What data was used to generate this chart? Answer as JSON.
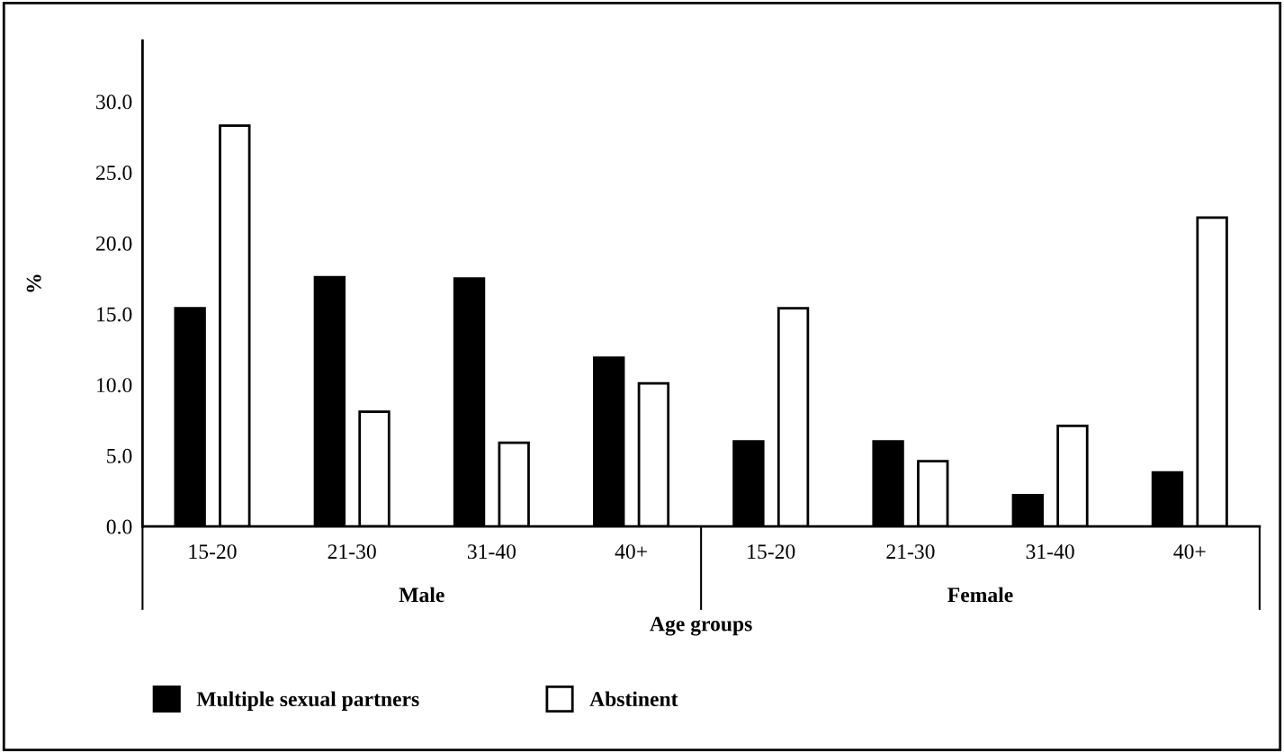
{
  "chart_data": {
    "type": "bar",
    "xlabel": "Age groups",
    "ylabel": "%",
    "categories": [
      "15-20",
      "21-30",
      "31-40",
      "40+",
      "15-20",
      "21-30",
      "31-40",
      "40+"
    ],
    "series": [
      {
        "name": "Multiple sexual partners",
        "color": "#000000",
        "values": [
          15.4,
          17.6,
          17.5,
          11.9,
          6.0,
          6.0,
          2.2,
          3.8
        ]
      },
      {
        "name": "Abstinent",
        "color": "#ffffff",
        "values": [
          28.3,
          8.1,
          5.9,
          10.1,
          15.4,
          4.6,
          7.1,
          21.8
        ]
      }
    ],
    "ylim": [
      0,
      34.3
    ],
    "yticks": [
      {
        "value": 0,
        "label": "0.0"
      },
      {
        "value": 5,
        "label": "5.0"
      },
      {
        "value": 10,
        "label": "10.0"
      },
      {
        "value": 15,
        "label": "15.0"
      },
      {
        "value": 20,
        "label": "20.0"
      },
      {
        "value": 25,
        "label": "25.0"
      },
      {
        "value": 30,
        "label": "30.0"
      }
    ],
    "annotations": [
      "Male",
      "Female"
    ],
    "legend": "bottom left",
    "grid": false
  }
}
